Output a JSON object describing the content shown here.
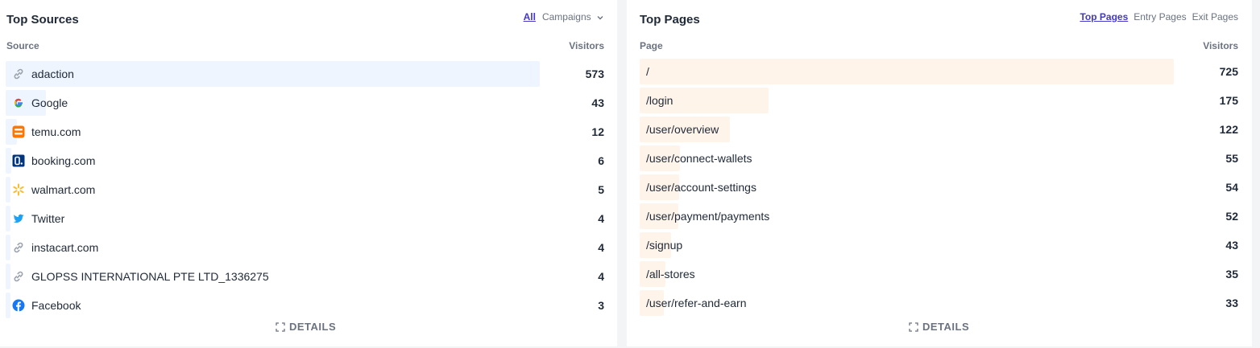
{
  "sources": {
    "title": "Top Sources",
    "tabs": [
      {
        "label": "All",
        "active": true
      },
      {
        "label": "Campaigns",
        "active": false
      }
    ],
    "col_left": "Source",
    "col_right": "Visitors",
    "rows": [
      {
        "label": "adaction",
        "value": "573",
        "icon": "link-icon"
      },
      {
        "label": "Google",
        "value": "43",
        "icon": "google-icon"
      },
      {
        "label": "temu.com",
        "value": "12",
        "icon": "temu-icon"
      },
      {
        "label": "booking.com",
        "value": "6",
        "icon": "booking-icon"
      },
      {
        "label": "walmart.com",
        "value": "5",
        "icon": "walmart-icon"
      },
      {
        "label": "Twitter",
        "value": "4",
        "icon": "twitter-icon"
      },
      {
        "label": "instacart.com",
        "value": "4",
        "icon": "link-icon"
      },
      {
        "label": "GLOPSS INTERNATIONAL PTE LTD_1336275",
        "value": "4",
        "icon": "link-icon"
      },
      {
        "label": "Facebook",
        "value": "3",
        "icon": "facebook-icon"
      }
    ],
    "details_label": "DETAILS"
  },
  "pages": {
    "title": "Top Pages",
    "tabs": [
      {
        "label": "Top Pages",
        "active": true
      },
      {
        "label": "Entry Pages",
        "active": false
      },
      {
        "label": "Exit Pages",
        "active": false
      }
    ],
    "col_left": "Page",
    "col_right": "Visitors",
    "rows": [
      {
        "label": "/",
        "value": "725"
      },
      {
        "label": "/login",
        "value": "175"
      },
      {
        "label": "/user/overview",
        "value": "122"
      },
      {
        "label": "/user/connect-wallets",
        "value": "55"
      },
      {
        "label": "/user/account-settings",
        "value": "54"
      },
      {
        "label": "/user/payment/payments",
        "value": "52"
      },
      {
        "label": "/signup",
        "value": "43"
      },
      {
        "label": "/all-stores",
        "value": "35"
      },
      {
        "label": "/user/refer-and-earn",
        "value": "33"
      }
    ],
    "details_label": "DETAILS"
  },
  "colors": {
    "accent": "#4338ca",
    "sources_bar": "#eef5ff",
    "pages_bar": "#fff4ea"
  }
}
